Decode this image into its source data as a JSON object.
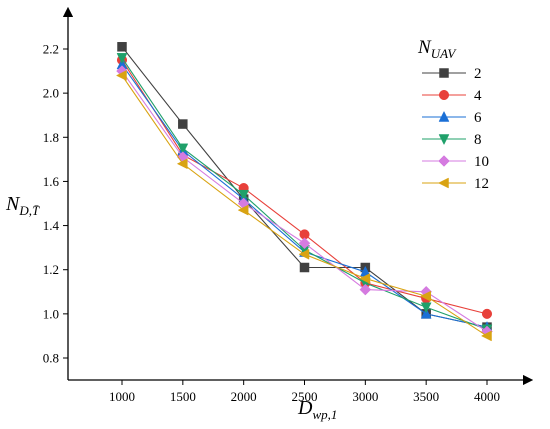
{
  "chart_data": {
    "type": "line",
    "x": [
      1000,
      1500,
      2000,
      2500,
      3000,
      3500,
      4000
    ],
    "x_tick_labels": [
      "1000",
      "1500",
      "2000",
      "2500",
      "3000",
      "3500",
      "4000"
    ],
    "y_tick_labels": [
      "0.8",
      "1.0",
      "1.2",
      "1.4",
      "1.6",
      "1.8",
      "2.0",
      "2.2"
    ],
    "xlim": [
      750,
      4250
    ],
    "ylim": [
      0.72,
      2.4
    ],
    "xlabel": {
      "main": "D",
      "sub": "wp,1"
    },
    "ylabel": {
      "main": "N",
      "sub": "D,T̄"
    },
    "legend": {
      "title_main": "N",
      "title_sub": "UAV",
      "placement": "top-right"
    },
    "grid": false,
    "series": [
      {
        "name": "2",
        "color": "#404040",
        "marker": "square",
        "values": [
          2.21,
          1.86,
          1.52,
          1.21,
          1.21,
          1.0,
          0.94
        ]
      },
      {
        "name": "4",
        "color": "#e8403a",
        "marker": "circle",
        "values": [
          2.15,
          1.72,
          1.57,
          1.36,
          1.14,
          1.07,
          1.0
        ]
      },
      {
        "name": "6",
        "color": "#1a6fd6",
        "marker": "triangle-up",
        "values": [
          2.13,
          1.74,
          1.52,
          1.28,
          1.19,
          1.0,
          0.94
        ]
      },
      {
        "name": "8",
        "color": "#1fa06a",
        "marker": "triangle-down",
        "values": [
          2.16,
          1.75,
          1.54,
          1.29,
          1.14,
          1.03,
          0.93
        ]
      },
      {
        "name": "10",
        "color": "#d57be0",
        "marker": "diamond",
        "values": [
          2.1,
          1.71,
          1.5,
          1.32,
          1.11,
          1.1,
          0.92
        ]
      },
      {
        "name": "12",
        "color": "#d9a312",
        "marker": "triangle-left",
        "values": [
          2.08,
          1.68,
          1.47,
          1.27,
          1.16,
          1.08,
          0.9
        ]
      }
    ]
  }
}
